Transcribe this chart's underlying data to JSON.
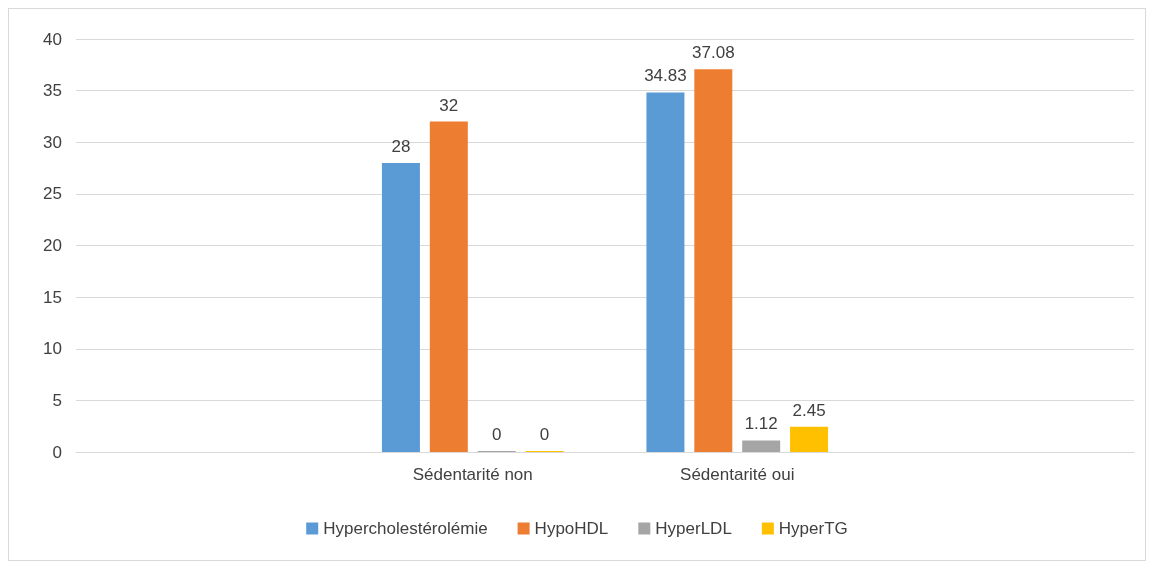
{
  "chart_data": {
    "type": "bar",
    "categories": [
      null,
      "Sédentarité non",
      "Sédentarité oui",
      null
    ],
    "series": [
      {
        "name": "Hypercholestérolémie",
        "color": "#5b9bd5",
        "values": [
          null,
          28,
          34.83,
          null
        ]
      },
      {
        "name": "HypoHDL",
        "color": "#ed7d31",
        "values": [
          null,
          32,
          37.08,
          null
        ]
      },
      {
        "name": "HyperLDL",
        "color": "#a5a5a5",
        "values": [
          null,
          0,
          1.12,
          null
        ]
      },
      {
        "name": "HyperTG",
        "color": "#ffc000",
        "values": [
          null,
          0,
          2.45,
          null
        ]
      }
    ],
    "ylim": [
      0,
      40
    ],
    "yticks": [
      0,
      5,
      10,
      15,
      20,
      25,
      30,
      35,
      40
    ],
    "grid": "y",
    "legend": "bottom",
    "data_labels": true
  }
}
